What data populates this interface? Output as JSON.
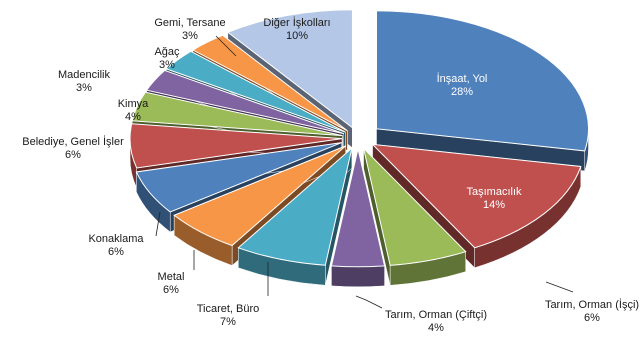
{
  "chart_data": {
    "type": "pie",
    "style": "3d-exploded",
    "legend": "none",
    "slices": [
      {
        "label": "İnşaat, Yol",
        "value": 28,
        "value_label": "28%",
        "color": "#4f81bd"
      },
      {
        "label": "Taşımacılık",
        "value": 14,
        "value_label": "14%",
        "color": "#c0504d"
      },
      {
        "label": "Tarım, Orman (İşçi)",
        "value": 6,
        "value_label": "6%",
        "color": "#9bbb59"
      },
      {
        "label": "Tarım, Orman (Çiftçi)",
        "value": 4,
        "value_label": "4%",
        "color": "#8064a2"
      },
      {
        "label": "Ticaret, Büro",
        "value": 7,
        "value_label": "7%",
        "color": "#4bacc6"
      },
      {
        "label": "Metal",
        "value": 6,
        "value_label": "6%",
        "color": "#f79646"
      },
      {
        "label": "Konaklama",
        "value": 6,
        "value_label": "6%",
        "color": "#4f81bd"
      },
      {
        "label": "Belediye, Genel İşler",
        "value": 6,
        "value_label": "6%",
        "color": "#c0504d"
      },
      {
        "label": "Kimya",
        "value": 4,
        "value_label": "4%",
        "color": "#9bbb59"
      },
      {
        "label": "Madencilik",
        "value": 3,
        "value_label": "3%",
        "color": "#8064a2"
      },
      {
        "label": "Ağaç",
        "value": 3,
        "value_label": "3%",
        "color": "#4bacc6"
      },
      {
        "label": "Gemi, Tersane",
        "value": 3,
        "value_label": "3%",
        "color": "#f79646"
      },
      {
        "label": "Diğer İşkolları",
        "value": 10,
        "value_label": "10%",
        "color": "#b4c7e7"
      }
    ]
  }
}
